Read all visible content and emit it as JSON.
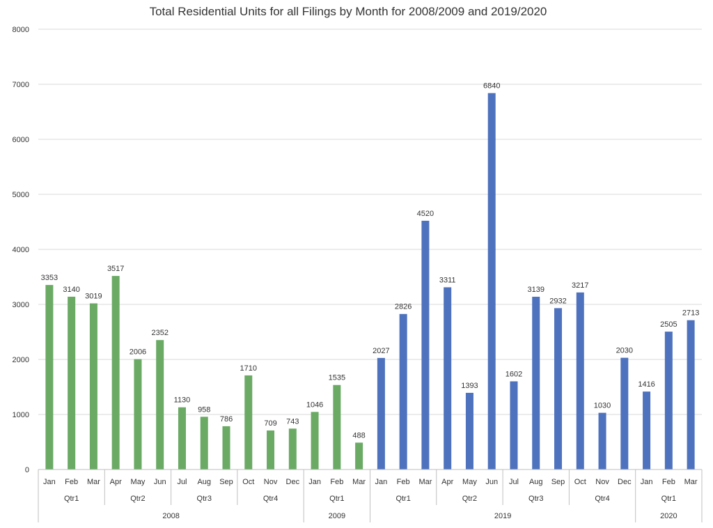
{
  "chart_data": {
    "type": "bar",
    "title": "Total Residential Units for all Filings by Month for 2008/2009 and 2019/2020",
    "xlabel": "",
    "ylabel": "",
    "ylim": [
      0,
      8000
    ],
    "yticks": [
      0,
      1000,
      2000,
      3000,
      4000,
      5000,
      6000,
      7000,
      8000
    ],
    "grid": true,
    "legend": "none",
    "colors": {
      "period_2008_2009": "#6aaa64",
      "period_2019_2020": "#4e72bd",
      "grid": "#d9d9d9",
      "axis_border": "#bfbfbf"
    },
    "categories": [
      "Jan",
      "Feb",
      "Mar",
      "Apr",
      "May",
      "Jun",
      "Jul",
      "Aug",
      "Sep",
      "Oct",
      "Nov",
      "Dec",
      "Jan",
      "Feb",
      "Mar",
      "Jan",
      "Feb",
      "Mar",
      "Apr",
      "May",
      "Jun",
      "Jul",
      "Aug",
      "Sep",
      "Oct",
      "Nov",
      "Dec",
      "Jan",
      "Feb",
      "Mar"
    ],
    "values": [
      3353,
      3140,
      3019,
      3517,
      2006,
      2352,
      1130,
      958,
      786,
      1710,
      709,
      743,
      1046,
      1535,
      488,
      2027,
      2826,
      4520,
      3311,
      1393,
      6840,
      1602,
      3139,
      2932,
      3217,
      1030,
      2030,
      1416,
      2505,
      2713
    ],
    "bar_color_group": [
      "g",
      "g",
      "g",
      "g",
      "g",
      "g",
      "g",
      "g",
      "g",
      "g",
      "g",
      "g",
      "g",
      "g",
      "g",
      "b",
      "b",
      "b",
      "b",
      "b",
      "b",
      "b",
      "b",
      "b",
      "b",
      "b",
      "b",
      "b",
      "b",
      "b"
    ],
    "quarters": [
      {
        "label": "Qtr1",
        "start": 0,
        "end": 2
      },
      {
        "label": "Qtr2",
        "start": 3,
        "end": 5
      },
      {
        "label": "Qtr3",
        "start": 6,
        "end": 8
      },
      {
        "label": "Qtr4",
        "start": 9,
        "end": 11
      },
      {
        "label": "Qtr1",
        "start": 12,
        "end": 14
      },
      {
        "label": "Qtr1",
        "start": 15,
        "end": 17
      },
      {
        "label": "Qtr2",
        "start": 18,
        "end": 20
      },
      {
        "label": "Qtr3",
        "start": 21,
        "end": 23
      },
      {
        "label": "Qtr4",
        "start": 24,
        "end": 26
      },
      {
        "label": "Qtr1",
        "start": 27,
        "end": 29
      }
    ],
    "years": [
      {
        "label": "2008",
        "start": 0,
        "end": 11
      },
      {
        "label": "2009",
        "start": 12,
        "end": 14
      },
      {
        "label": "2019",
        "start": 15,
        "end": 26
      },
      {
        "label": "2020",
        "start": 27,
        "end": 29
      }
    ]
  }
}
